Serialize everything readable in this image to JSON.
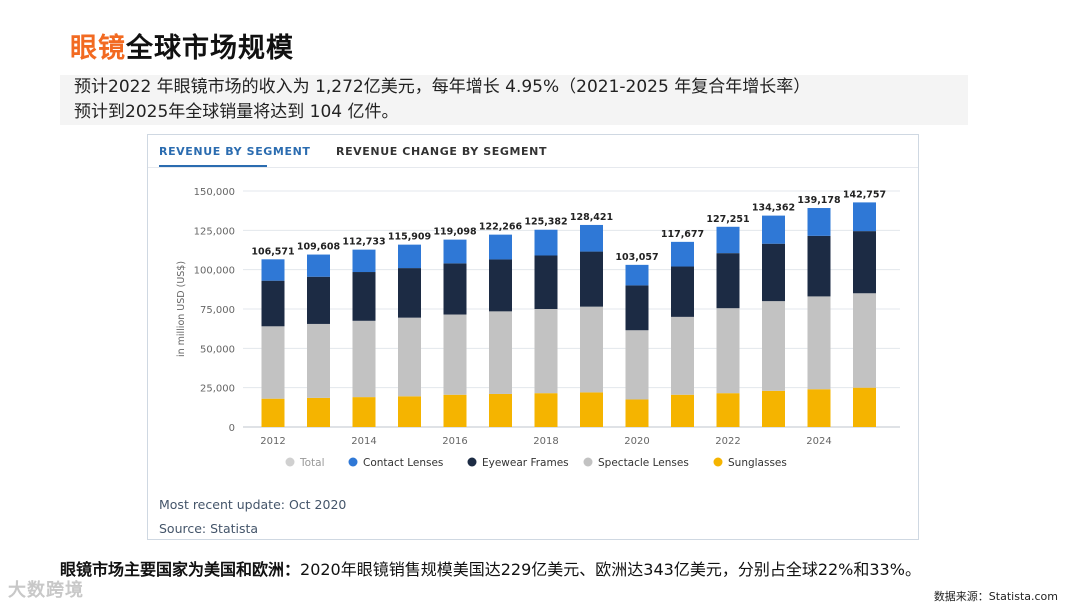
{
  "title": {
    "highlight": "眼镜",
    "rest": "全球市场规模"
  },
  "summary": {
    "line1": "预计2022 年眼镜市场的收入为 1,272亿美元，每年增长 4.95%（2021-2025 年复合年增长率）",
    "line2": "预计到2025年全球销量将达到 104 亿件。"
  },
  "tabs": {
    "active": "REVENUE BY SEGMENT",
    "inactive": "REVENUE CHANGE BY SEGMENT"
  },
  "chart_data": {
    "type": "bar",
    "stacked": true,
    "ylabel": "in million USD (US$)",
    "ylim": [
      0,
      150000
    ],
    "yticks": [
      "0",
      "25,000",
      "50,000",
      "75,000",
      "100,000",
      "125,000",
      "150,000"
    ],
    "categories": [
      "2012",
      "2013",
      "2014",
      "2015",
      "2016",
      "2017",
      "2018",
      "2019",
      "2020",
      "2021",
      "2022",
      "2023",
      "2024",
      "2025"
    ],
    "xtick_labels": [
      "2012",
      "",
      "2014",
      "",
      "2016",
      "",
      "2018",
      "",
      "2020",
      "",
      "2022",
      "",
      "2024",
      ""
    ],
    "totals_labels": [
      "106,571",
      "109,608",
      "112,733",
      "115,909",
      "119,098",
      "122,266",
      "125,382",
      "128,421",
      "103,057",
      "117,677",
      "127,251",
      "134,362",
      "139,178",
      "142,757"
    ],
    "totals": [
      106571,
      109608,
      112733,
      115909,
      119098,
      122266,
      125382,
      128421,
      103057,
      117677,
      127251,
      134362,
      139178,
      142757
    ],
    "series": [
      {
        "name": "Sunglasses",
        "color": "#f5b400",
        "values": [
          18000,
          18500,
          19000,
          19500,
          20500,
          21000,
          21500,
          22000,
          17500,
          20500,
          21500,
          23000,
          24000,
          25000
        ]
      },
      {
        "name": "Spectacle Lenses",
        "color": "#c2c2c2",
        "values": [
          46000,
          47000,
          48500,
          50000,
          51000,
          52500,
          53500,
          54500,
          44000,
          49500,
          54000,
          57000,
          59000,
          60000
        ]
      },
      {
        "name": "Eyewear Frames",
        "color": "#1c2b44",
        "values": [
          29000,
          30000,
          31000,
          31500,
          32500,
          33000,
          34000,
          35000,
          28500,
          32000,
          35000,
          36500,
          38500,
          39500
        ]
      },
      {
        "name": "Contact Lenses",
        "color": "#2f78d6",
        "values": [
          13571,
          14108,
          14233,
          14909,
          15098,
          15766,
          16382,
          16921,
          13057,
          15677,
          16751,
          17862,
          17678,
          18257
        ]
      }
    ],
    "legend": [
      {
        "name": "Total",
        "color": "#d0d0d0"
      },
      {
        "name": "Contact Lenses",
        "color": "#2f78d6"
      },
      {
        "name": "Eyewear Frames",
        "color": "#1c2b44"
      },
      {
        "name": "Spectacle Lenses",
        "color": "#c2c2c2"
      },
      {
        "name": "Sunglasses",
        "color": "#f5b400"
      }
    ],
    "legend_position": "bottom",
    "grid": true
  },
  "meta": {
    "update": "Most recent update: Oct 2020",
    "source": "Source: Statista"
  },
  "bottom": {
    "bold": "眼镜市场主要国家为美国和欧洲：",
    "text": "2020年眼镜销售规模美国达229亿美元、欧洲达343亿美元，分别占全球22%和33%。"
  },
  "logo": "大数跨境",
  "footer_source": "数据来源：Statista.com"
}
